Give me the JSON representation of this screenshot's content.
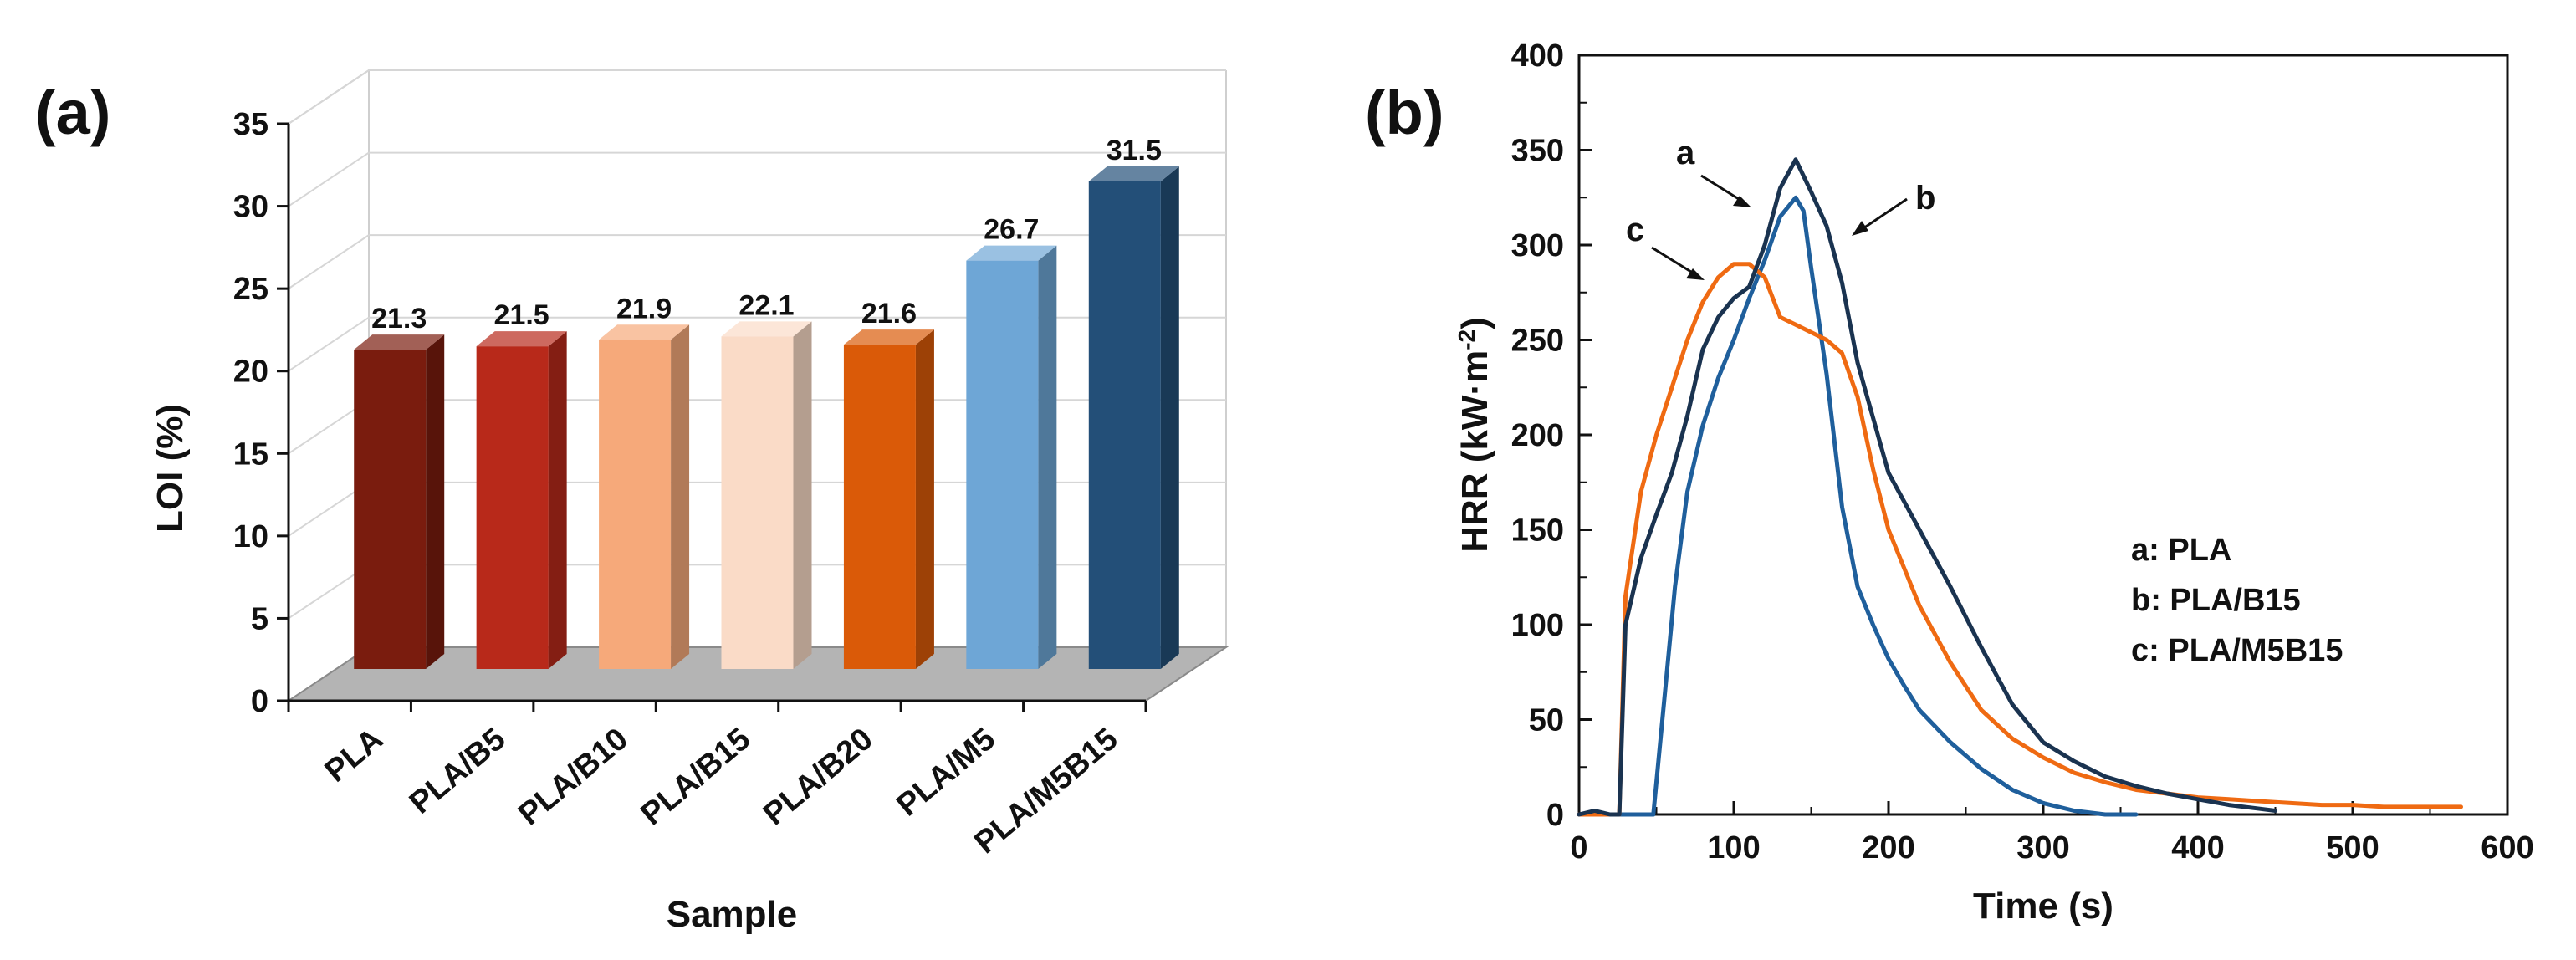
{
  "chart_data": [
    {
      "type": "bar",
      "panel_label": "(a)",
      "xlabel": "Sample",
      "ylabel": "LOI (%)",
      "ylim": [
        0,
        35
      ],
      "yticks": [
        "0",
        "5",
        "10",
        "15",
        "20",
        "25",
        "30",
        "35"
      ],
      "categories": [
        "PLA",
        "PLA/B5",
        "PLA/B10",
        "PLA/B15",
        "PLA/B20",
        "PLA/M5",
        "PLA/M5B15"
      ],
      "values": [
        21.3,
        21.5,
        21.9,
        22.1,
        21.6,
        26.7,
        31.5
      ],
      "data_labels": [
        "21.3",
        "21.5",
        "21.9",
        "22.1",
        "21.6",
        "26.7",
        "31.5"
      ],
      "colors": [
        "#7a1c0e",
        "#b8291a",
        "#f6a97a",
        "#fadbc7",
        "#da5a08",
        "#6ea6d6",
        "#234f78"
      ],
      "grid": true,
      "style": "3d"
    },
    {
      "type": "line",
      "panel_label": "(b)",
      "xlabel": "Time (s)",
      "ylabel_main": "HRR (kW·m",
      "ylabel_sup": "-2",
      "ylabel_end": ")",
      "xlim": [
        0,
        600
      ],
      "ylim": [
        0,
        400
      ],
      "xticks": [
        "0",
        "100",
        "200",
        "300",
        "400",
        "500",
        "600"
      ],
      "yticks": [
        "0",
        "50",
        "100",
        "150",
        "200",
        "250",
        "300",
        "350",
        "400"
      ],
      "legend": [
        "a: PLA",
        "b: PLA/B15",
        "c: PLA/M5B15"
      ],
      "legend_position": "right",
      "annotations": [
        "a",
        "b",
        "c"
      ],
      "series": [
        {
          "key": "a",
          "color": "#1f5f9c",
          "x": [
            0,
            10,
            20,
            30,
            40,
            48,
            55,
            62,
            70,
            80,
            90,
            100,
            110,
            120,
            130,
            140,
            145,
            150,
            160,
            170,
            180,
            190,
            200,
            210,
            220,
            240,
            260,
            280,
            300,
            320,
            340,
            360
          ],
          "y": [
            0,
            0,
            0,
            0,
            0,
            0,
            60,
            120,
            170,
            205,
            230,
            250,
            272,
            292,
            315,
            325,
            318,
            288,
            232,
            162,
            120,
            100,
            82,
            68,
            55,
            38,
            24,
            13,
            6,
            2,
            0,
            0
          ]
        },
        {
          "key": "b",
          "color": "#1a3350",
          "x": [
            0,
            10,
            20,
            26,
            30,
            40,
            50,
            60,
            70,
            80,
            90,
            100,
            110,
            120,
            130,
            140,
            150,
            160,
            170,
            180,
            200,
            220,
            240,
            260,
            280,
            300,
            320,
            340,
            360,
            380,
            400,
            420,
            440,
            450
          ],
          "y": [
            0,
            2,
            0,
            0,
            100,
            135,
            158,
            180,
            210,
            245,
            262,
            272,
            278,
            300,
            330,
            345,
            328,
            310,
            280,
            238,
            180,
            150,
            120,
            88,
            58,
            38,
            28,
            20,
            15,
            11,
            8,
            5,
            3,
            2
          ]
        },
        {
          "key": "c",
          "color": "#ef6a12",
          "x": [
            0,
            10,
            20,
            26,
            30,
            40,
            50,
            60,
            70,
            80,
            90,
            100,
            110,
            120,
            130,
            140,
            150,
            160,
            170,
            180,
            190,
            200,
            220,
            240,
            260,
            280,
            300,
            320,
            340,
            360,
            380,
            400,
            420,
            440,
            460,
            480,
            500,
            520,
            540,
            570
          ],
          "y": [
            0,
            0,
            0,
            0,
            115,
            170,
            200,
            225,
            250,
            270,
            283,
            290,
            290,
            283,
            262,
            258,
            254,
            250,
            243,
            220,
            182,
            150,
            110,
            80,
            55,
            40,
            30,
            22,
            17,
            13,
            11,
            9,
            8,
            7,
            6,
            5,
            5,
            4,
            4,
            4
          ]
        }
      ]
    }
  ]
}
